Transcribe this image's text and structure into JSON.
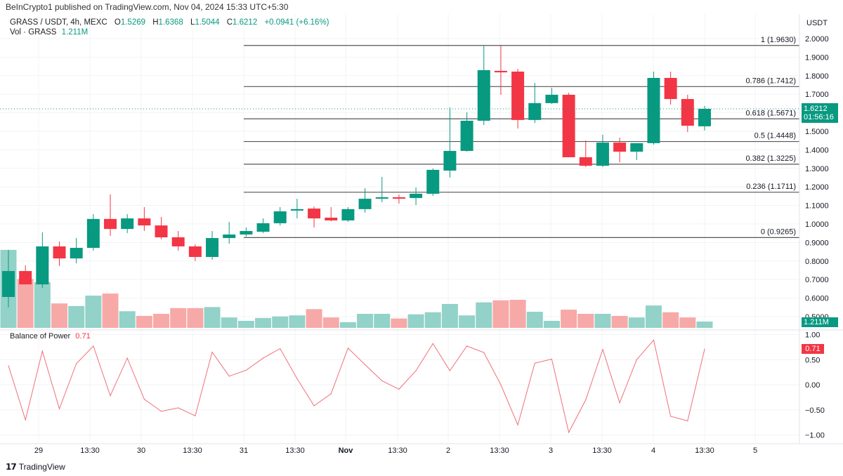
{
  "publisher_line": "BeInCrypto1 published on TradingView.com, Nov 04, 2024 15:33 UTC+5:30",
  "legend": {
    "symbol": "GRASS / USDT, 4h, MEXC",
    "o_label": "O",
    "o": "1.5269",
    "h_label": "H",
    "h": "1.6368",
    "l_label": "L",
    "l": "1.5044",
    "c_label": "C",
    "c": "1.6212",
    "change": "+0.0941 (+6.16%)",
    "vol_label": "Vol · GRASS",
    "vol": "1.211M"
  },
  "price_axis": {
    "currency": "USDT",
    "current_price": "1.6212",
    "countdown": "01:56:16",
    "volume_tag": "1.211M"
  },
  "indicator": {
    "name": "Balance of Power",
    "value": "0.71",
    "tag": "0.71"
  },
  "branding": {
    "logo": "TV",
    "name": "TradingView"
  },
  "colors": {
    "up": "#089981",
    "down": "#f23645",
    "vol_up": "#92d2c8",
    "vol_down": "#f7a9a7",
    "bop": "#f07078",
    "fib": "#555555"
  },
  "chart_data": [
    {
      "type": "candlestick",
      "title": "GRASS / USDT, 4h, MEXC",
      "ylim": [
        0.45,
        2.05
      ],
      "y_ticks": [
        "2.0000",
        "1.9000",
        "1.8000",
        "1.7000",
        "1.6000",
        "1.5000",
        "1.4000",
        "1.3000",
        "1.2000",
        "1.1000",
        "1.0000",
        "0.9000",
        "0.8000",
        "0.7000",
        "0.6000",
        "0.5000"
      ],
      "x_ticks": [
        "29",
        "13:30",
        "30",
        "13:30",
        "31",
        "13:30",
        "Nov",
        "13:30",
        "2",
        "13:30",
        "3",
        "13:30",
        "4",
        "13:30",
        "5"
      ],
      "ohlc": [
        [
          0.606,
          0.86,
          0.55,
          0.746
        ],
        [
          0.746,
          0.777,
          0.674,
          0.674
        ],
        [
          0.674,
          0.955,
          0.655,
          0.879
        ],
        [
          0.879,
          0.905,
          0.773,
          0.814
        ],
        [
          0.814,
          0.924,
          0.788,
          0.871
        ],
        [
          0.871,
          1.053,
          0.856,
          1.027
        ],
        [
          1.027,
          1.159,
          0.936,
          0.973
        ],
        [
          0.973,
          1.053,
          0.951,
          1.03
        ],
        [
          1.03,
          1.091,
          0.962,
          0.992
        ],
        [
          0.992,
          1.038,
          0.917,
          0.928
        ],
        [
          0.928,
          0.962,
          0.856,
          0.879
        ],
        [
          0.879,
          0.89,
          0.8,
          0.822
        ],
        [
          0.822,
          0.962,
          0.807,
          0.924
        ],
        [
          0.924,
          1.011,
          0.894,
          0.943
        ],
        [
          0.943,
          0.981,
          0.932,
          0.962
        ],
        [
          0.958,
          1.03,
          0.951,
          1.004
        ],
        [
          1.004,
          1.091,
          0.992,
          1.068
        ],
        [
          1.072,
          1.136,
          1.03,
          1.08
        ],
        [
          1.083,
          1.094,
          0.981,
          1.03
        ],
        [
          1.034,
          1.091,
          1.015,
          1.019
        ],
        [
          1.019,
          1.091,
          1.011,
          1.08
        ],
        [
          1.08,
          1.193,
          1.061,
          1.136
        ],
        [
          1.14,
          1.254,
          1.117,
          1.144
        ],
        [
          1.144,
          1.159,
          1.11,
          1.14
        ],
        [
          1.14,
          1.197,
          1.102,
          1.163
        ],
        [
          1.163,
          1.299,
          1.151,
          1.292
        ],
        [
          1.288,
          1.629,
          1.25,
          1.394
        ],
        [
          1.394,
          1.602,
          1.39,
          1.557
        ],
        [
          1.557,
          1.962,
          1.534,
          1.83
        ],
        [
          1.826,
          1.962,
          1.697,
          1.818
        ],
        [
          1.822,
          1.837,
          1.515,
          1.561
        ],
        [
          1.561,
          1.761,
          1.545,
          1.652
        ],
        [
          1.652,
          1.735,
          1.648,
          1.697
        ],
        [
          1.697,
          1.708,
          1.36,
          1.36
        ],
        [
          1.36,
          1.451,
          1.307,
          1.314
        ],
        [
          1.314,
          1.481,
          1.307,
          1.439
        ],
        [
          1.439,
          1.466,
          1.333,
          1.39
        ],
        [
          1.39,
          1.436,
          1.345,
          1.436
        ],
        [
          1.436,
          1.822,
          1.428,
          1.788
        ],
        [
          1.788,
          1.822,
          1.644,
          1.674
        ],
        [
          1.674,
          1.697,
          1.496,
          1.53
        ],
        [
          1.5269,
          1.6368,
          1.5044,
          1.6212
        ]
      ],
      "volume_m": [
        15.0,
        9.4,
        8.8,
        4.7,
        4.2,
        6.2,
        6.6,
        3.2,
        2.3,
        2.7,
        3.8,
        3.8,
        4.0,
        2.0,
        1.35,
        1.9,
        2.2,
        2.4,
        3.6,
        2.0,
        1.1,
        2.7,
        2.7,
        1.8,
        2.6,
        3.0,
        4.6,
        2.4,
        4.9,
        5.3,
        5.4,
        3.1,
        1.35,
        3.5,
        2.7,
        2.7,
        2.3,
        2.0,
        4.3,
        3.0,
        2.0,
        1.211
      ],
      "fib_levels": [
        {
          "label": "1 (1.9630)",
          "value": 1.963
        },
        {
          "label": "0.786 (1.7412)",
          "value": 1.7412
        },
        {
          "label": "0.618 (1.5671)",
          "value": 1.5671
        },
        {
          "label": "0.5 (1.4448)",
          "value": 1.4448
        },
        {
          "label": "0.382 (1.3225)",
          "value": 1.3225
        },
        {
          "label": "0.236 (1.1711)",
          "value": 1.1711
        },
        {
          "label": "0 (0.9265)",
          "value": 0.9265
        }
      ]
    },
    {
      "type": "line",
      "title": "Balance of Power",
      "ylim": [
        -1.2,
        1.2
      ],
      "y_ticks": [
        "1.00",
        "0.50",
        "0.00",
        "−0.50",
        "−1.00"
      ],
      "values": [
        0.38,
        -0.7,
        0.67,
        -0.48,
        0.42,
        0.77,
        -0.22,
        0.53,
        -0.29,
        -0.53,
        -0.46,
        -0.62,
        0.65,
        0.17,
        0.29,
        0.53,
        0.72,
        0.12,
        -0.42,
        -0.18,
        0.73,
        0.4,
        0.08,
        -0.09,
        0.28,
        0.82,
        0.28,
        0.77,
        0.64,
        0.0,
        -0.8,
        0.43,
        0.51,
        -0.95,
        -0.3,
        0.7,
        -0.36,
        0.5,
        0.89,
        -0.63,
        -0.72,
        0.71
      ]
    }
  ]
}
